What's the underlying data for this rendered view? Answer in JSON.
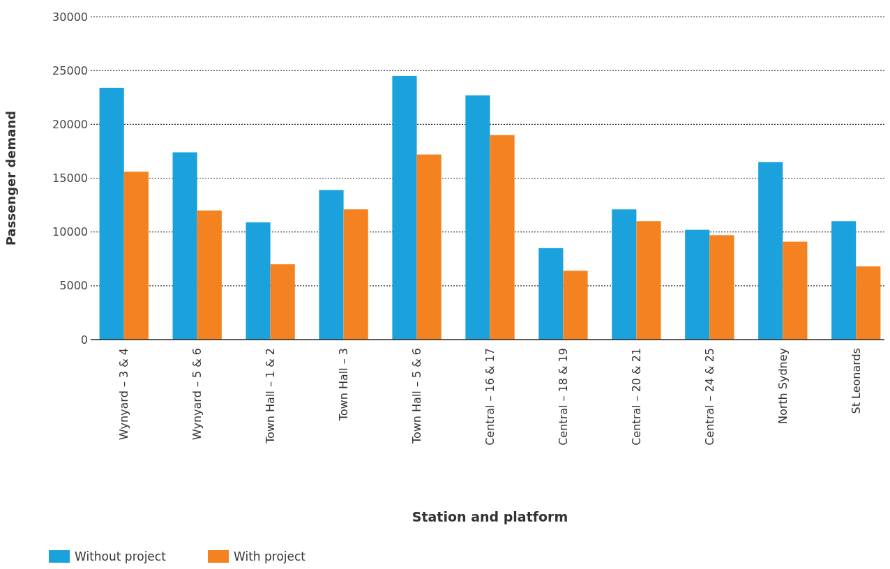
{
  "chart_data": {
    "type": "bar",
    "xlabel": "Station and platform",
    "ylabel": "Passenger demand",
    "categories": [
      "Wynyard – 3 & 4",
      "Wynyard – 5 & 6",
      "Town Hall – 1 & 2",
      "Town Hall – 3",
      "Town Hall – 5 & 6",
      "Central – 16 & 17",
      "Central – 18 & 19",
      "Central – 20 & 21",
      "Central – 24 & 25",
      "North Sydney",
      "St Leonards"
    ],
    "series": [
      {
        "name": "Without project",
        "color": "#1ba1dc",
        "values": [
          23400,
          17400,
          10900,
          13900,
          24500,
          22700,
          8500,
          12100,
          10200,
          16500,
          11000
        ]
      },
      {
        "name": "With project",
        "color": "#f58220",
        "values": [
          15600,
          12000,
          7000,
          12100,
          17200,
          19000,
          6400,
          11000,
          9700,
          9100,
          6800
        ]
      }
    ],
    "ylim": [
      0,
      30000
    ],
    "yticks": [
      0,
      5000,
      10000,
      15000,
      20000,
      25000,
      30000
    ],
    "grid": "y",
    "legend": "bottom left"
  }
}
